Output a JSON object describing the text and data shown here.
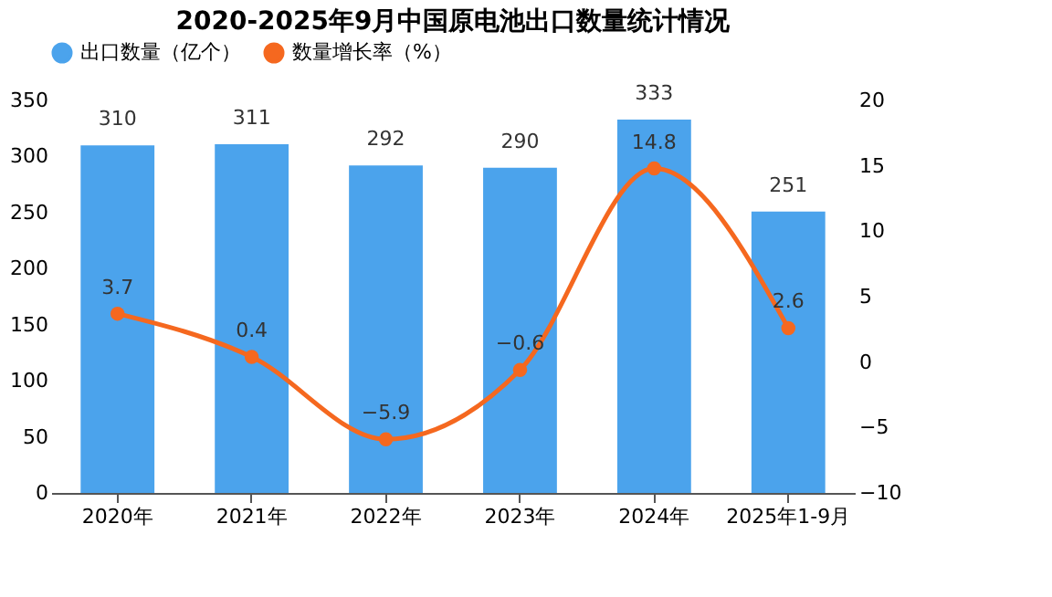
{
  "chart_data": {
    "type": "bar",
    "title": "2020-2025年9月中国原电池出口数量统计情况",
    "categories": [
      "2020年",
      "2021年",
      "2022年",
      "2023年",
      "2024年",
      "2025年1-9月"
    ],
    "series": [
      {
        "name": "出口数量（亿个）",
        "color": "#4ba3ec",
        "values": [
          310,
          311,
          292,
          290,
          333,
          251
        ]
      },
      {
        "name": "数量增长率（%）",
        "color": "#f5681f",
        "type": "line",
        "axis": "y2",
        "marker": "circle",
        "values": [
          3.7,
          0.4,
          -5.9,
          -0.6,
          14.8,
          2.6
        ]
      }
    ],
    "ylim": [
      0,
      350
    ],
    "yticks": [
      0,
      50,
      100,
      150,
      200,
      250,
      300,
      350
    ],
    "y2lim": [
      -10,
      20
    ],
    "y2ticks": [
      -10,
      -5,
      0,
      5,
      10,
      15,
      20
    ],
    "data_labels": true,
    "grid": false,
    "legend": "top"
  }
}
